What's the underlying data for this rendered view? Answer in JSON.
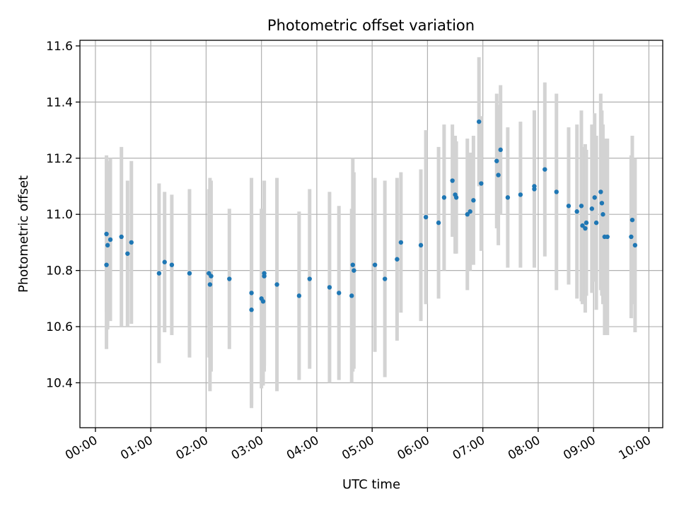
{
  "chart_data": {
    "type": "scatter",
    "title": "Photometric offset variation",
    "xlabel": "UTC time",
    "ylabel": "Photometric offset",
    "xlim": [
      -0.28,
      10.25
    ],
    "ylim": [
      10.24,
      11.62
    ],
    "grid": true,
    "legend": "none",
    "x_ticks": [
      0,
      1,
      2,
      3,
      4,
      5,
      6,
      7,
      8,
      9,
      10
    ],
    "x_tick_labels": [
      "00:00",
      "01:00",
      "02:00",
      "03:00",
      "04:00",
      "05:00",
      "06:00",
      "07:00",
      "08:00",
      "09:00",
      "10:00"
    ],
    "y_ticks": [
      10.4,
      10.6,
      10.8,
      11.0,
      11.2,
      11.4,
      11.6
    ],
    "y_tick_labels": [
      "10.4",
      "10.6",
      "10.8",
      "11.0",
      "11.2",
      "11.4",
      "11.6"
    ],
    "colors": {
      "marker": "#1f77b4",
      "errorbar": "#d3d3d3"
    },
    "series": [
      {
        "name": "offset",
        "x": [
          0.2,
          0.22,
          0.2,
          0.27,
          0.47,
          0.58,
          0.65,
          1.15,
          1.25,
          1.38,
          1.7,
          2.05,
          2.07,
          2.09,
          2.42,
          2.82,
          2.82,
          3.0,
          3.03,
          3.05,
          3.05,
          3.28,
          3.68,
          3.87,
          4.23,
          4.4,
          4.63,
          4.65,
          4.67,
          5.05,
          5.23,
          5.45,
          5.52,
          5.88,
          5.97,
          6.2,
          6.3,
          6.45,
          6.5,
          6.52,
          6.72,
          6.77,
          6.83,
          6.93,
          6.97,
          7.25,
          7.28,
          7.32,
          7.45,
          7.68,
          7.93,
          7.93,
          8.12,
          8.33,
          8.55,
          8.7,
          8.78,
          8.8,
          8.85,
          8.87,
          8.97,
          9.02,
          9.05,
          9.13,
          9.15,
          9.17,
          9.2,
          9.25,
          9.68,
          9.7,
          9.75
        ],
        "y": [
          10.93,
          10.89,
          10.82,
          10.91,
          10.92,
          10.86,
          10.9,
          10.79,
          10.83,
          10.82,
          10.79,
          10.79,
          10.75,
          10.78,
          10.77,
          10.72,
          10.66,
          10.7,
          10.69,
          10.78,
          10.79,
          10.75,
          10.71,
          10.77,
          10.74,
          10.72,
          10.71,
          10.82,
          10.8,
          10.82,
          10.77,
          10.84,
          10.9,
          10.89,
          10.99,
          10.97,
          11.06,
          11.12,
          11.07,
          11.06,
          11.0,
          11.01,
          11.05,
          11.33,
          11.11,
          11.19,
          11.14,
          11.23,
          11.06,
          11.07,
          11.09,
          11.1,
          11.16,
          11.08,
          11.03,
          11.01,
          11.03,
          10.96,
          10.95,
          10.97,
          11.02,
          11.06,
          10.97,
          11.08,
          11.04,
          11.0,
          10.92,
          10.92,
          10.92,
          10.98,
          10.89
        ],
        "err": [
          0.28,
          0.3,
          0.3,
          0.29,
          0.32,
          0.26,
          0.29,
          0.32,
          0.25,
          0.25,
          0.3,
          0.3,
          0.38,
          0.34,
          0.25,
          0.41,
          0.34,
          0.32,
          0.3,
          0.34,
          0.33,
          0.38,
          0.3,
          0.32,
          0.34,
          0.31,
          0.31,
          0.38,
          0.35,
          0.31,
          0.35,
          0.29,
          0.25,
          0.27,
          0.31,
          0.27,
          0.26,
          0.2,
          0.21,
          0.2,
          0.27,
          0.21,
          0.23,
          0.23,
          0.24,
          0.24,
          0.25,
          0.23,
          0.25,
          0.26,
          0.28,
          0.27,
          0.31,
          0.35,
          0.28,
          0.31,
          0.34,
          0.28,
          0.3,
          0.26,
          0.3,
          0.3,
          0.31,
          0.35,
          0.33,
          0.32,
          0.35,
          0.35,
          0.29,
          0.3,
          0.31
        ]
      }
    ]
  }
}
